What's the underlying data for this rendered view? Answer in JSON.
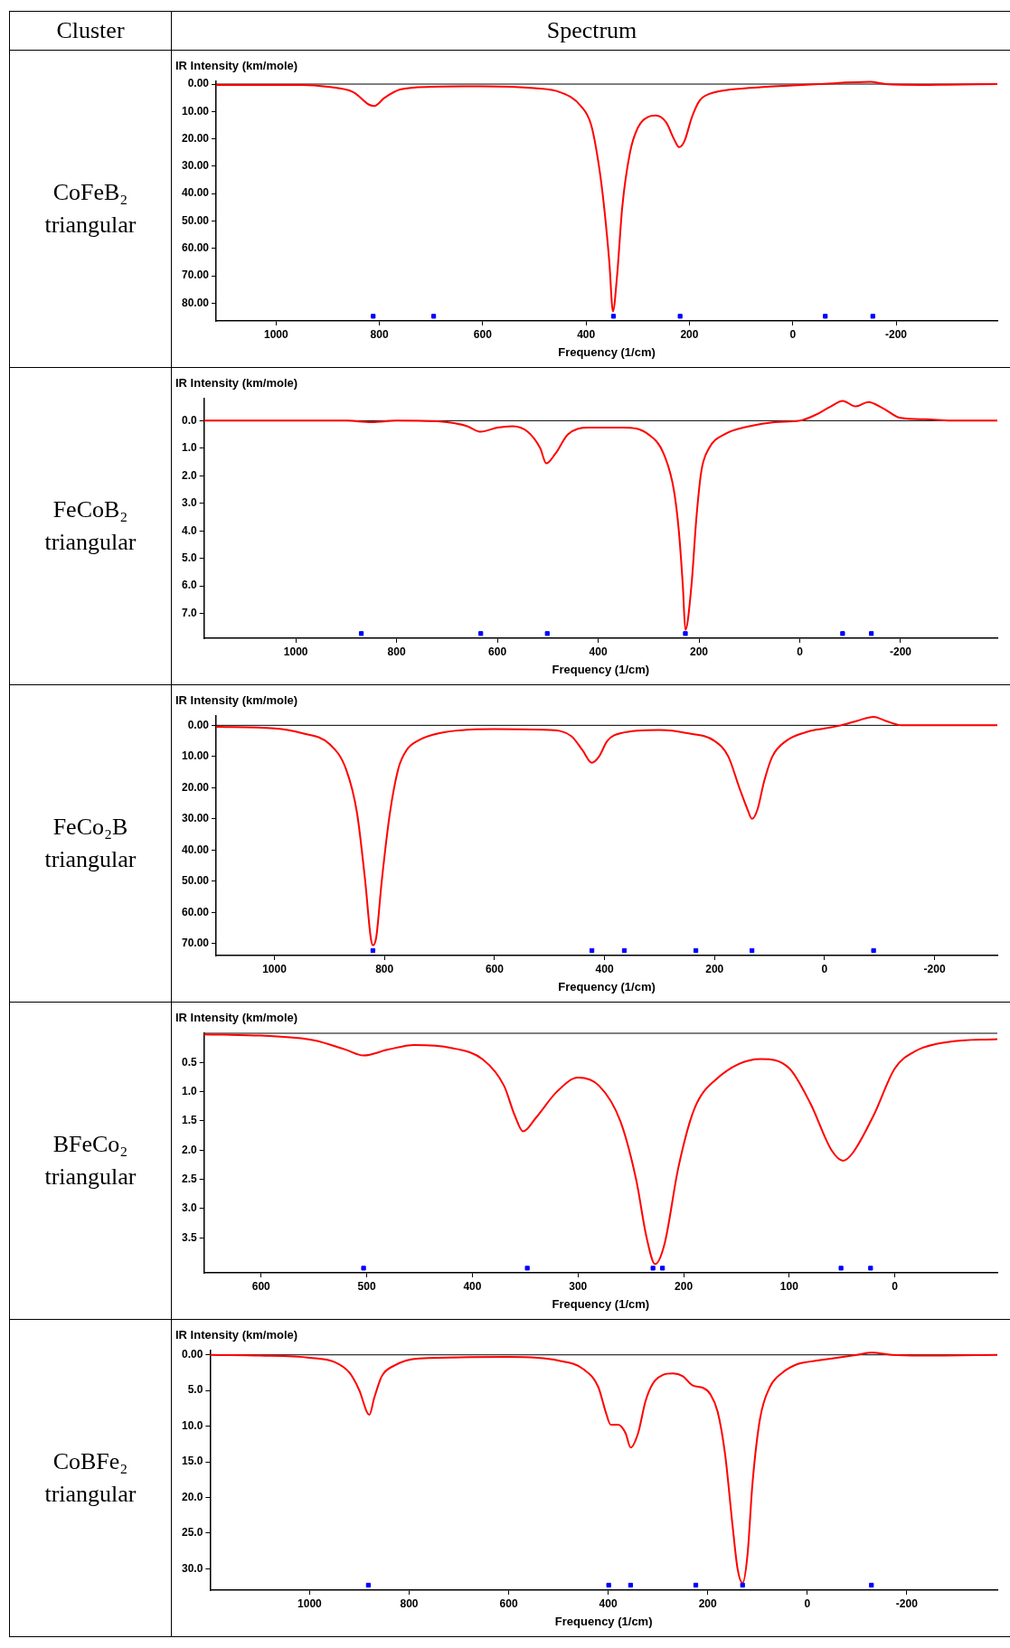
{
  "chart_data": [
    {
      "type": "line",
      "title": "CoFeB₂ triangular",
      "annotations": [
        "Cluster",
        "Spectrum"
      ],
      "xlabel": "Frequency (1/cm)",
      "ylabel": "IR Intensity (km/mole)",
      "xlim": [
        1116,
        -396
      ],
      "xticks": [
        1000,
        800,
        600,
        400,
        200,
        0,
        -200
      ],
      "ylim": [
        86.5,
        -1
      ],
      "yticks": [
        {
          "value": 0,
          "label": "0.00"
        },
        {
          "value": 10,
          "label": "10.00"
        },
        {
          "value": 20,
          "label": "20.00"
        },
        {
          "value": 30,
          "label": "30.00"
        },
        {
          "value": 40,
          "label": "40.00"
        },
        {
          "value": 50,
          "label": "50.00"
        },
        {
          "value": 60,
          "label": "60.00"
        },
        {
          "value": 70,
          "label": "70.00"
        },
        {
          "value": 80,
          "label": "80.00"
        }
      ],
      "ref_lines": [
        {
          "axis": "y",
          "value": 0,
          "color": "#000000"
        }
      ],
      "series": [
        {
          "type": "line",
          "color": "#ff0000",
          "x": [
            1116,
            950,
            900,
            850,
            820,
            810,
            790,
            760,
            700,
            600,
            500,
            450,
            410,
            390,
            375,
            365,
            355,
            348,
            340,
            330,
            315,
            300,
            280,
            265,
            245,
            230,
            220,
            210,
            195,
            180,
            160,
            120,
            50,
            0,
            -50,
            -150,
            -180,
            -250,
            -300,
            -396
          ],
          "values": [
            0.3,
            0.3,
            1,
            3,
            7.5,
            8,
            5,
            2,
            1,
            0.8,
            1.5,
            3,
            8,
            15,
            30,
            45,
            65,
            83,
            70,
            45,
            25,
            16,
            12,
            11.5,
            14,
            20,
            23,
            21,
            12,
            6,
            3.5,
            2,
            1,
            0.5,
            0,
            -0.8,
            0,
            0.3,
            0.2,
            0
          ]
        },
        {
          "type": "scatter",
          "color": "#0000ff",
          "x": [
            812,
            695,
            347,
            218,
            -63,
            -155
          ],
          "values": [
            84.8,
            84.8,
            84.8,
            84.8,
            84.8,
            84.8
          ]
        }
      ]
    },
    {
      "type": "line",
      "title": "FeCoB₂ triangular",
      "xlabel": "Frequency (1/cm)",
      "ylabel": "IR Intensity (km/mole)",
      "xlim": [
        1182,
        -392
      ],
      "xticks": [
        1000,
        800,
        600,
        400,
        200,
        0,
        -200
      ],
      "ylim": [
        7.9,
        -0.8
      ],
      "yticks": [
        {
          "value": 0,
          "label": "0.0"
        },
        {
          "value": 1,
          "label": "1.0"
        },
        {
          "value": 2,
          "label": "2.0"
        },
        {
          "value": 3,
          "label": "3.0"
        },
        {
          "value": 4,
          "label": "4.0"
        },
        {
          "value": 5,
          "label": "5.0"
        },
        {
          "value": 6,
          "label": "6.0"
        },
        {
          "value": 7,
          "label": "7.0"
        }
      ],
      "ref_lines": [
        {
          "axis": "y",
          "value": 0,
          "color": "#000000"
        }
      ],
      "series": [
        {
          "type": "line",
          "color": "#ff0000",
          "x": [
            1182,
            900,
            850,
            800,
            700,
            660,
            633,
            600,
            570,
            540,
            515,
            503,
            485,
            460,
            420,
            350,
            300,
            270,
            250,
            240,
            232,
            227,
            215,
            205,
            195,
            180,
            150,
            100,
            50,
            0,
            -30,
            -60,
            -85,
            -111,
            -136,
            -165,
            -200,
            -250,
            -300,
            -392
          ],
          "values": [
            0,
            0,
            0.05,
            0,
            0.05,
            0.2,
            0.4,
            0.25,
            0.2,
            0.4,
            1,
            1.55,
            1.2,
            0.5,
            0.25,
            0.25,
            0.5,
            1.2,
            2.5,
            4,
            6,
            7.6,
            6,
            3.5,
            1.8,
            1,
            0.5,
            0.2,
            0.05,
            0,
            -0.2,
            -0.5,
            -0.72,
            -0.52,
            -0.68,
            -0.45,
            -0.1,
            -0.05,
            0,
            0
          ]
        },
        {
          "type": "scatter",
          "color": "#0000ff",
          "x": [
            870,
            633,
            501,
            227,
            -85,
            -142
          ],
          "values": [
            7.73,
            7.73,
            7.73,
            7.73,
            7.73,
            7.73
          ]
        }
      ]
    },
    {
      "type": "line",
      "title": "FeCo₂B triangular",
      "xlabel": "Frequency (1/cm)",
      "ylabel": "IR Intensity (km/mole)",
      "xlim": [
        1106,
        -314
      ],
      "xticks": [
        1000,
        800,
        600,
        400,
        200,
        0,
        -200
      ],
      "ylim": [
        73.8,
        -3
      ],
      "yticks": [
        {
          "value": 0,
          "label": "0.00"
        },
        {
          "value": 10,
          "label": "10.00"
        },
        {
          "value": 20,
          "label": "20.00"
        },
        {
          "value": 30,
          "label": "30.00"
        },
        {
          "value": 40,
          "label": "40.00"
        },
        {
          "value": 50,
          "label": "50.00"
        },
        {
          "value": 60,
          "label": "60.00"
        },
        {
          "value": 70,
          "label": "70.00"
        }
      ],
      "ref_lines": [
        {
          "axis": "y",
          "value": 0,
          "color": "#000000"
        }
      ],
      "series": [
        {
          "type": "line",
          "color": "#ff0000",
          "x": [
            1106,
            1000,
            950,
            900,
            870,
            850,
            835,
            825,
            821,
            815,
            805,
            790,
            775,
            760,
            740,
            700,
            600,
            500,
            460,
            440,
            423,
            410,
            395,
            370,
            300,
            250,
            200,
            175,
            155,
            140,
            132,
            122,
            110,
            95,
            70,
            30,
            0,
            -30,
            -60,
            -89,
            -110,
            -140,
            -200,
            -314
          ],
          "values": [
            0.5,
            1,
            2.5,
            6,
            14,
            28,
            50,
            68,
            70.5,
            68,
            50,
            28,
            14,
            8,
            5,
            2.5,
            1.2,
            1.5,
            3.5,
            8,
            12,
            10,
            5,
            2.5,
            1.5,
            2.5,
            5,
            10,
            20,
            27,
            30,
            27,
            18,
            10,
            5,
            2,
            1,
            0,
            -1.5,
            -2.7,
            -1.5,
            0,
            0,
            0
          ]
        },
        {
          "type": "scatter",
          "color": "#0000ff",
          "x": [
            821,
            423,
            364,
            234,
            132,
            -89
          ],
          "values": [
            72.2,
            72.2,
            72.2,
            72.2,
            72.2,
            72.2
          ]
        }
      ]
    },
    {
      "type": "line",
      "title": "BFeCo₂ triangular",
      "xlabel": "Frequency (1/cm)",
      "ylabel": "IR Intensity (km/mole)",
      "xlim": [
        654,
        -97
      ],
      "xticks": [
        600,
        500,
        400,
        300,
        200,
        100,
        0
      ],
      "ylim": [
        4.1,
        0
      ],
      "yticks": [
        {
          "value": 0.5,
          "label": "0.5"
        },
        {
          "value": 1,
          "label": "1.0"
        },
        {
          "value": 1.5,
          "label": "1.5"
        },
        {
          "value": 2,
          "label": "2.0"
        },
        {
          "value": 2.5,
          "label": "2.5"
        },
        {
          "value": 3,
          "label": "3.0"
        },
        {
          "value": 3.5,
          "label": "3.5"
        }
      ],
      "ref_lines": [
        {
          "axis": "y",
          "value": 0,
          "color": "#000000"
        }
      ],
      "series": [
        {
          "type": "line",
          "color": "#ff0000",
          "x": [
            654,
            600,
            550,
            520,
            503,
            480,
            455,
            420,
            390,
            370,
            360,
            352,
            340,
            320,
            300,
            280,
            260,
            245,
            235,
            227,
            218,
            205,
            190,
            170,
            127,
            100,
            80,
            60,
            49,
            40,
            20,
            0,
            -20,
            -50,
            -97
          ],
          "values": [
            0.02,
            0.04,
            0.12,
            0.28,
            0.38,
            0.28,
            0.2,
            0.25,
            0.45,
            0.9,
            1.4,
            1.68,
            1.45,
            1,
            0.76,
            0.9,
            1.5,
            2.5,
            3.5,
            3.95,
            3.6,
            2.3,
            1.3,
            0.8,
            0.44,
            0.6,
            1.2,
            2,
            2.18,
            2.05,
            1.4,
            0.6,
            0.3,
            0.15,
            0.1
          ]
        },
        {
          "type": "scatter",
          "color": "#0000ff",
          "x": [
            503,
            348,
            229,
            220,
            51,
            23
          ],
          "values": [
            4.02,
            4.02,
            4.02,
            4.02,
            4.02,
            4.02
          ]
        }
      ]
    },
    {
      "type": "line",
      "title": "CoBFe₂ triangular",
      "xlabel": "Frequency (1/cm)",
      "ylabel": "IR Intensity (km/mole)",
      "xlim": [
        1200,
        -382
      ],
      "xticks": [
        1000,
        800,
        600,
        400,
        200,
        0,
        -200
      ],
      "ylim": [
        33,
        -0.6
      ],
      "yticks": [
        {
          "value": 0,
          "label": "0.00"
        },
        {
          "value": 5,
          "label": "5.0"
        },
        {
          "value": 10,
          "label": "10.0"
        },
        {
          "value": 15,
          "label": "15.0"
        },
        {
          "value": 20,
          "label": "20.0"
        },
        {
          "value": 25,
          "label": "25.0"
        },
        {
          "value": 30,
          "label": "30.0"
        }
      ],
      "ref_lines": [
        {
          "axis": "y",
          "value": 0,
          "color": "#000000"
        }
      ],
      "series": [
        {
          "type": "line",
          "color": "#ff0000",
          "x": [
            1200,
            1100,
            1000,
            950,
            920,
            900,
            885,
            880,
            870,
            855,
            830,
            780,
            600,
            500,
            450,
            420,
            405,
            395,
            380,
            365,
            355,
            340,
            325,
            310,
            290,
            270,
            250,
            230,
            210,
            195,
            180,
            165,
            150,
            140,
            130,
            120,
            110,
            95,
            75,
            50,
            20,
            0,
            -50,
            -100,
            -130,
            -170,
            -250,
            -382
          ],
          "values": [
            0,
            0.1,
            0.4,
            1,
            2.5,
            5,
            8,
            8.4,
            6,
            3,
            1.5,
            0.5,
            0.3,
            0.8,
            2,
            4.5,
            8,
            9.8,
            9.8,
            11,
            13,
            11,
            6.5,
            4,
            2.8,
            2.6,
            3,
            4.3,
            4.6,
            5.5,
            8,
            14,
            24,
            30,
            32,
            28,
            18,
            9,
            4.5,
            2.5,
            1.3,
            1,
            0.5,
            0,
            -0.3,
            0,
            0.1,
            0
          ]
        },
        {
          "type": "scatter",
          "color": "#0000ff",
          "x": [
            882,
            399,
            355,
            224,
            130,
            -129
          ],
          "values": [
            32.3,
            32.3,
            32.3,
            32.3,
            32.3,
            32.3
          ]
        }
      ]
    }
  ]
}
